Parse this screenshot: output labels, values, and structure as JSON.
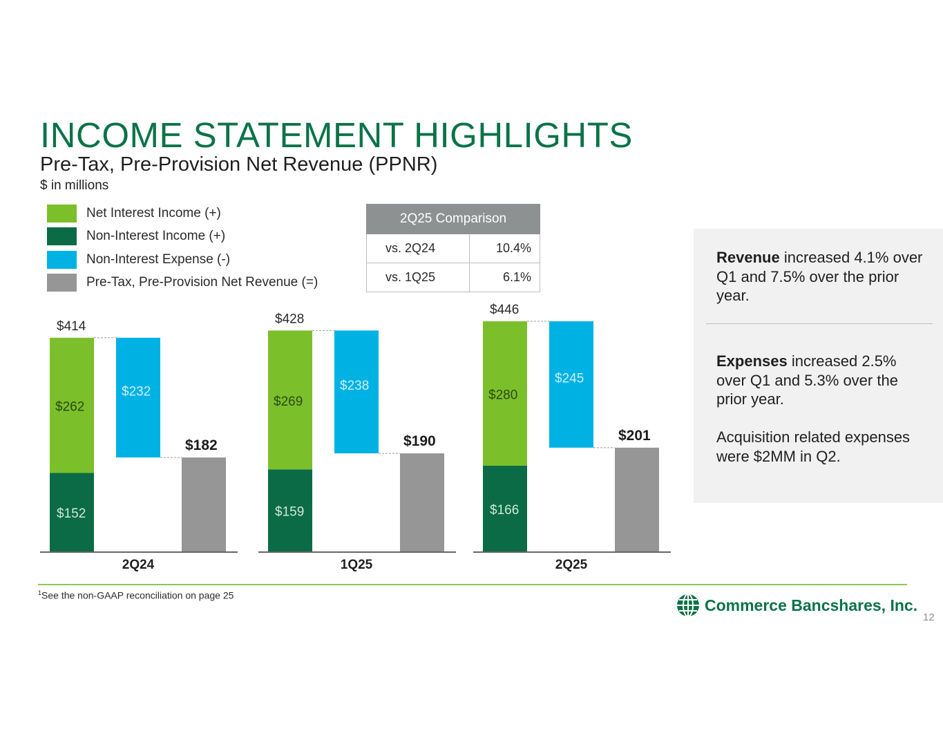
{
  "header": {
    "title": "INCOME STATEMENT HIGHLIGHTS",
    "subtitle": "Pre-Tax, Pre-Provision Net Revenue (PPNR)",
    "units": "$ in millions"
  },
  "legend": [
    {
      "label": "Net Interest Income (+)",
      "color": "#7bbf2b"
    },
    {
      "label": "Non-Interest Income (+)",
      "color": "#0b6b47"
    },
    {
      "label": "Non-Interest Expense (-)",
      "color": "#00b2e3"
    },
    {
      "label": "Pre-Tax, Pre-Provision Net Revenue (=)",
      "color": "#969696"
    }
  ],
  "comparison": {
    "header": "2Q25 Comparison",
    "rows": [
      {
        "label": "vs. 2Q24",
        "value": "10.4%"
      },
      {
        "label": "vs. 1Q25",
        "value": "6.1%"
      }
    ]
  },
  "side_notes": {
    "note1_bold": "Revenue",
    "note1_text": " increased 4.1% over Q1 and 7.5% over the prior year.",
    "note2_bold": "Expenses",
    "note2_text": " increased 2.5% over Q1 and 5.3% over the prior year.",
    "note3_text": "Acquisition related expenses were $2MM in Q2."
  },
  "chart_data": {
    "type": "bar",
    "subtype": "waterfall",
    "categories": [
      "2Q24",
      "1Q25",
      "2Q25"
    ],
    "series": [
      {
        "name": "Non-Interest Income (+)",
        "values": [
          152,
          159,
          166
        ],
        "labels": [
          "$152",
          "$159",
          "$166"
        ],
        "color": "#0b6b47"
      },
      {
        "name": "Net Interest Income (+)",
        "values": [
          262,
          269,
          280
        ],
        "labels": [
          "$262",
          "$269",
          "$280"
        ],
        "color": "#7bbf2b"
      },
      {
        "name": "Non-Interest Expense (-)",
        "values": [
          232,
          238,
          245
        ],
        "labels": [
          "$232",
          "$238",
          "$245"
        ],
        "color": "#00b2e3"
      },
      {
        "name": "Pre-Tax, Pre-Provision Net Revenue (=)",
        "values": [
          182,
          190,
          201
        ],
        "labels": [
          "$182",
          "$190",
          "$201"
        ],
        "color": "#969696"
      }
    ],
    "totals": [
      414,
      428,
      446
    ],
    "total_labels": [
      "$414",
      "$428",
      "$446"
    ]
  },
  "footer": {
    "footnote_mark": "1",
    "footnote": "See the non-GAAP reconciliation on page 25",
    "company": "Commerce Bancshares, Inc.",
    "page_number": "12"
  }
}
